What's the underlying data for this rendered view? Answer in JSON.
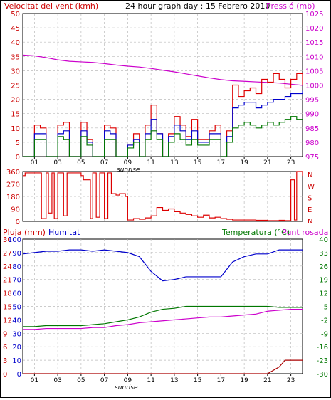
{
  "chart_data": [
    {
      "type": "line",
      "title": "24 hour graph day : 15 Febrero 2010",
      "left_label": "Velocitat del vent (kmh)",
      "right_label": "Pressió (mb)",
      "x_ticks": [
        "01",
        "03",
        "05",
        "07",
        "09",
        "11",
        "13",
        "15",
        "17",
        "19",
        "21",
        "23"
      ],
      "sunrise_label": "sunrise",
      "y_left": [
        0,
        5,
        10,
        15,
        20,
        25,
        30,
        35,
        40,
        45,
        50
      ],
      "y_right": [
        975,
        980,
        985,
        990,
        995,
        1000,
        1005,
        1010,
        1015,
        1020,
        1025
      ],
      "ylim_left": [
        0,
        50
      ],
      "ylim_right": [
        975,
        1025
      ],
      "series": [
        {
          "color": "#cc00cc",
          "axis": "right",
          "x": [
            0,
            1,
            2,
            3,
            4,
            5,
            6,
            7,
            8,
            9,
            10,
            11,
            12,
            13,
            14,
            15,
            16,
            17,
            18,
            19,
            20,
            21,
            22,
            23,
            24
          ],
          "values": [
            1010.5,
            1010.2,
            1009.6,
            1008.8,
            1008.3,
            1008.1,
            1007.9,
            1007.5,
            1007.0,
            1006.6,
            1006.3,
            1005.8,
            1005.2,
            1004.6,
            1003.9,
            1003.2,
            1002.5,
            1001.9,
            1001.5,
            1001.3,
            1001.1,
            1000.9,
            1000.7,
            1000.3,
            999.9
          ]
        },
        {
          "color": "#dd0000",
          "axis": "left",
          "x": [
            0,
            0.5,
            1,
            1.5,
            2,
            2.5,
            3,
            3.5,
            4,
            4.5,
            5,
            5.5,
            6,
            6.5,
            7,
            7.5,
            8,
            8.5,
            9,
            9.5,
            10,
            10.5,
            11,
            11.5,
            12,
            12.5,
            13,
            13.5,
            14,
            14.5,
            15,
            15.5,
            16,
            16.5,
            17,
            17.5,
            18,
            18.5,
            19,
            19.5,
            20,
            20.5,
            21,
            21.5,
            22,
            22.5,
            23,
            23.5,
            24
          ],
          "values": [
            0,
            0,
            11,
            10,
            0,
            0,
            11,
            12,
            0,
            0,
            12,
            6,
            0,
            0,
            11,
            10,
            0,
            0,
            4,
            8,
            0,
            11,
            18,
            8,
            0,
            8,
            14,
            11,
            7,
            13,
            6,
            6,
            9,
            11,
            0,
            9,
            25,
            21,
            23,
            24,
            22,
            27,
            26,
            29,
            27,
            24,
            27,
            29,
            25
          ]
        },
        {
          "color": "#0000cc",
          "axis": "left",
          "x": [
            0,
            0.5,
            1,
            1.5,
            2,
            2.5,
            3,
            3.5,
            4,
            4.5,
            5,
            5.5,
            6,
            6.5,
            7,
            7.5,
            8,
            8.5,
            9,
            9.5,
            10,
            10.5,
            11,
            11.5,
            12,
            12.5,
            13,
            13.5,
            14,
            14.5,
            15,
            15.5,
            16,
            16.5,
            17,
            17.5,
            18,
            18.5,
            19,
            19.5,
            20,
            20.5,
            21,
            21.5,
            22,
            22.5,
            23,
            23.5,
            24
          ],
          "values": [
            0,
            0,
            8,
            8,
            0,
            0,
            8,
            9,
            0,
            0,
            9,
            5,
            0,
            0,
            9,
            8,
            0,
            0,
            4,
            6,
            0,
            8,
            13,
            8,
            0,
            7,
            11,
            9,
            6,
            9,
            5,
            5,
            8,
            8,
            0,
            7,
            17,
            18,
            19,
            19,
            17,
            18,
            19,
            20,
            20,
            21,
            22,
            22,
            23
          ]
        },
        {
          "color": "#007700",
          "axis": "left",
          "x": [
            0,
            0.5,
            1,
            1.5,
            2,
            2.5,
            3,
            3.5,
            4,
            4.5,
            5,
            5.5,
            6,
            6.5,
            7,
            7.5,
            8,
            8.5,
            9,
            9.5,
            10,
            10.5,
            11,
            11.5,
            12,
            12.5,
            13,
            13.5,
            14,
            14.5,
            15,
            15.5,
            16,
            16.5,
            17,
            17.5,
            18,
            18.5,
            19,
            19.5,
            20,
            20.5,
            21,
            21.5,
            22,
            22.5,
            23,
            23.5,
            24
          ],
          "values": [
            0,
            0,
            6,
            6,
            0,
            0,
            7,
            6,
            0,
            0,
            7,
            4,
            0,
            0,
            6,
            6,
            0,
            0,
            3,
            5,
            0,
            6,
            9,
            6,
            0,
            5,
            8,
            6,
            4,
            6,
            4,
            4,
            6,
            6,
            0,
            5,
            10,
            11,
            12,
            11,
            10,
            11,
            12,
            11,
            12,
            13,
            14,
            13,
            13
          ]
        }
      ]
    },
    {
      "type": "line",
      "y_left": [
        0,
        90,
        180,
        270,
        360
      ],
      "ylim": [
        0,
        360
      ],
      "right_letters": [
        "N",
        "W",
        "S",
        "E",
        "N"
      ],
      "x_ticks": [
        "01",
        "03",
        "05",
        "07",
        "09",
        "11",
        "13",
        "15",
        "17",
        "19",
        "21",
        "23"
      ],
      "series": [
        {
          "color": "#dd0000",
          "x": [
            0,
            0.2,
            0.4,
            1.5,
            1.6,
            2.0,
            2.2,
            2.5,
            2.7,
            3.0,
            3.2,
            3.5,
            3.8,
            4.0,
            4.5,
            5.0,
            5.2,
            5.8,
            6.0,
            6.3,
            6.6,
            7.0,
            7.3,
            7.6,
            8.0,
            8.3,
            8.8,
            9.0,
            9.5,
            10.0,
            10.5,
            11.0,
            11.5,
            12.0,
            12.5,
            13.0,
            13.5,
            14.0,
            14.5,
            15.0,
            15.5,
            16.0,
            16.5,
            17.0,
            17.5,
            18.0,
            19.0,
            20.0,
            21.0,
            22.0,
            22.5,
            23.0,
            23.3,
            23.5,
            24
          ],
          "values": [
            330,
            350,
            350,
            350,
            20,
            350,
            60,
            350,
            20,
            350,
            350,
            40,
            350,
            350,
            350,
            330,
            300,
            20,
            350,
            30,
            350,
            20,
            350,
            200,
            190,
            200,
            180,
            10,
            20,
            15,
            25,
            40,
            100,
            80,
            90,
            70,
            60,
            50,
            40,
            30,
            45,
            25,
            30,
            20,
            15,
            10,
            10,
            8,
            5,
            8,
            5,
            300,
            10,
            360,
            330
          ]
        }
      ]
    },
    {
      "type": "line",
      "left_label": "Pluja (mm)",
      "left_label_2": "Humitat",
      "right_label": "Temperatura (°C)",
      "right_label_2": "Punt rosada",
      "sunrise_label": "sunrise",
      "y_left_humidity": [
        0,
        10,
        20,
        30,
        40,
        50,
        60,
        70,
        80,
        90,
        100
      ],
      "y_left_rain": [
        0,
        3,
        6,
        9,
        12,
        15,
        18,
        21,
        24,
        27,
        30
      ],
      "y_right": [
        -30,
        -23,
        -16,
        -9,
        -2,
        5,
        12,
        19,
        26,
        33,
        40
      ],
      "x_ticks": [
        "01",
        "03",
        "05",
        "07",
        "09",
        "11",
        "13",
        "15",
        "17",
        "19",
        "21",
        "23"
      ],
      "series": [
        {
          "name": "Humitat",
          "color": "#0000cc",
          "x": [
            0,
            1,
            2,
            3,
            4,
            5,
            6,
            7,
            8,
            9,
            10,
            11,
            12,
            13,
            14,
            15,
            16,
            17,
            18,
            19,
            20,
            21,
            22,
            23,
            24
          ],
          "values": [
            89,
            90,
            91,
            91,
            92,
            92,
            91,
            92,
            91,
            90,
            87,
            76,
            69,
            70,
            72,
            72,
            72,
            72,
            83,
            87,
            89,
            89,
            92,
            92,
            92
          ]
        },
        {
          "name": "Temperatura",
          "color": "#007700",
          "x": [
            0,
            1,
            2,
            3,
            4,
            5,
            6,
            7,
            8,
            9,
            10,
            11,
            12,
            13,
            14,
            15,
            16,
            17,
            18,
            19,
            20,
            21,
            22,
            23,
            24
          ],
          "values": [
            -5.5,
            -5.5,
            -5,
            -5,
            -5,
            -5,
            -4.5,
            -4,
            -3,
            -2,
            -0.5,
            2,
            3.5,
            4,
            5,
            5,
            5,
            5,
            5,
            5,
            5,
            5,
            4.5,
            4.5,
            4.5
          ]
        },
        {
          "name": "Punt rosada",
          "color": "#cc00cc",
          "x": [
            0,
            1,
            2,
            3,
            4,
            5,
            6,
            7,
            8,
            9,
            10,
            11,
            12,
            13,
            14,
            15,
            16,
            17,
            18,
            19,
            20,
            21,
            22,
            23,
            24
          ],
          "values": [
            -7,
            -7,
            -6.5,
            -6.5,
            -6.5,
            -6.5,
            -6,
            -6,
            -5,
            -4.5,
            -3.5,
            -3,
            -2.5,
            -2,
            -1.5,
            -1,
            -0.5,
            -0.5,
            0,
            0.5,
            1,
            2.5,
            3,
            3.5,
            3.5
          ]
        },
        {
          "name": "Pluja",
          "color": "#aa0000",
          "axis": "rain",
          "x": [
            0,
            18,
            19,
            20,
            21,
            22,
            22.5,
            23,
            23.5,
            24
          ],
          "values": [
            0,
            0,
            0,
            0,
            0,
            1.5,
            3,
            3,
            3,
            3
          ]
        }
      ]
    }
  ]
}
